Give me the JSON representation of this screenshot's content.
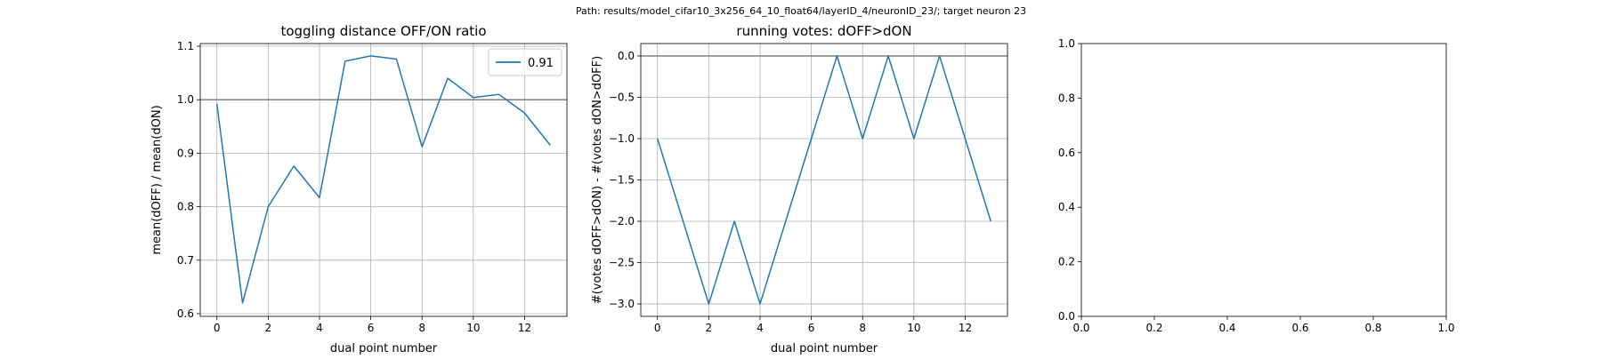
{
  "figure": {
    "suptitle": "Path: results/model_cifar10_3x256_64_10_float64/layerID_4/neuronID_23/; target neuron 23"
  },
  "chart_data": [
    {
      "type": "line",
      "title": "toggling distance OFF/ON ratio",
      "xlabel": "dual point number",
      "ylabel": "mean(dOFF) / mean(dON)",
      "xlim": [
        -0.65,
        13.65
      ],
      "ylim": [
        0.595,
        1.105
      ],
      "xticks": [
        0,
        2,
        4,
        6,
        8,
        10,
        12
      ],
      "yticks": [
        0.6,
        0.7,
        0.8,
        0.9,
        1.0,
        1.1
      ],
      "ytick_labels": [
        "0.6",
        "0.7",
        "0.8",
        "0.9",
        "1.0",
        "1.1"
      ],
      "grid": true,
      "hline": 1.0,
      "legend": {
        "placement": "top-right",
        "entries": [
          "0.91"
        ]
      },
      "series": [
        {
          "name": "0.91",
          "color": "#1f77b4",
          "x": [
            0,
            1,
            2,
            3,
            4,
            5,
            6,
            7,
            8,
            9,
            10,
            11,
            12,
            13
          ],
          "values": [
            0.992,
            0.62,
            0.8,
            0.876,
            0.817,
            1.072,
            1.082,
            1.076,
            0.912,
            1.04,
            1.004,
            1.01,
            0.975,
            0.915
          ]
        }
      ]
    },
    {
      "type": "line",
      "title": "running votes: dOFF>dON",
      "xlabel": "dual point number",
      "ylabel": "#(votes dOFF>dON) - #(votes dON>dOFF)",
      "xlim": [
        -0.65,
        13.65
      ],
      "ylim": [
        -3.15,
        0.15
      ],
      "xticks": [
        0,
        2,
        4,
        6,
        8,
        10,
        12
      ],
      "yticks": [
        -3.0,
        -2.5,
        -2.0,
        -1.5,
        -1.0,
        -0.5,
        0.0
      ],
      "ytick_labels": [
        "−3.0",
        "−2.5",
        "−2.0",
        "−1.5",
        "−1.0",
        "−0.5",
        "0.0"
      ],
      "grid": true,
      "hline": 0.0,
      "series": [
        {
          "color": "#1f77b4",
          "x": [
            0,
            1,
            2,
            3,
            4,
            5,
            6,
            7,
            8,
            9,
            10,
            11,
            12,
            13
          ],
          "values": [
            -1,
            -2,
            -3,
            -2,
            -3,
            -2,
            -1,
            0,
            -1,
            0,
            -1,
            0,
            -1,
            -2
          ]
        }
      ]
    },
    {
      "type": "line",
      "title": "",
      "xlabel": "",
      "ylabel": "",
      "xlim": [
        0,
        1
      ],
      "ylim": [
        0,
        1
      ],
      "xticks": [
        0,
        0.2,
        0.4,
        0.6,
        0.8,
        1.0
      ],
      "yticks": [
        0,
        0.2,
        0.4,
        0.6,
        0.8,
        1.0
      ],
      "xtick_labels": [
        "0.0",
        "0.2",
        "0.4",
        "0.6",
        "0.8",
        "1.0"
      ],
      "ytick_labels": [
        "0.0",
        "0.2",
        "0.4",
        "0.6",
        "0.8",
        "1.0"
      ],
      "grid": false,
      "series": []
    }
  ]
}
